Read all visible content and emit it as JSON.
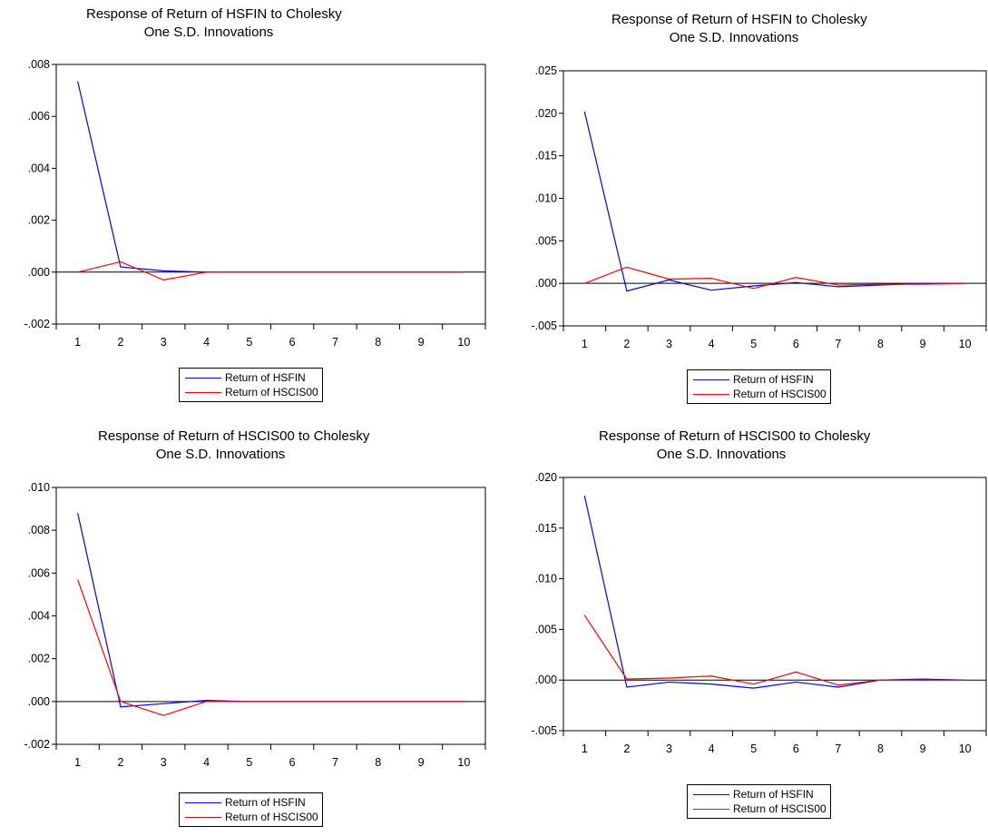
{
  "chart_data": [
    {
      "type": "line",
      "title": "Response of Return of HSFIN to Cholesky",
      "subtitle": "One S.D. Innovations",
      "x": [
        1,
        2,
        3,
        4,
        5,
        6,
        7,
        8,
        9,
        10
      ],
      "ylim": [
        -0.002,
        0.008
      ],
      "yticks": [
        -0.002,
        0.0,
        0.002,
        0.004,
        0.006,
        0.008
      ],
      "ytick_labels": [
        "-.002",
        ".000",
        ".002",
        ".004",
        ".006",
        ".008"
      ],
      "xtick_labels": [
        "1",
        "2",
        "3",
        "4",
        "5",
        "6",
        "7",
        "8",
        "9",
        "10"
      ],
      "zero_line": true,
      "legend_position": "bottom",
      "series": [
        {
          "name": "Return of HSFIN",
          "color": "#0000ff",
          "values": [
            0.00735,
            0.0002,
            5e-05,
            0.0,
            0.0,
            0.0,
            0.0,
            0.0,
            0.0,
            0.0
          ]
        },
        {
          "name": "Return of HSCIS00",
          "color": "#ff0000",
          "values": [
            0.0,
            0.0004,
            -0.0003,
            0.0,
            0.0,
            0.0,
            0.0,
            0.0,
            0.0,
            0.0
          ]
        }
      ]
    },
    {
      "type": "line",
      "title": "Response of Return of HSFIN to Cholesky",
      "subtitle": "One S.D. Innovations",
      "x": [
        1,
        2,
        3,
        4,
        5,
        6,
        7,
        8,
        9,
        10
      ],
      "ylim": [
        -0.005,
        0.025
      ],
      "yticks": [
        -0.005,
        0.0,
        0.005,
        0.01,
        0.015,
        0.02,
        0.025
      ],
      "ytick_labels": [
        "-.005",
        ".000",
        ".005",
        ".010",
        ".015",
        ".020",
        ".025"
      ],
      "xtick_labels": [
        "1",
        "2",
        "3",
        "4",
        "5",
        "6",
        "7",
        "8",
        "9",
        "10"
      ],
      "zero_line": true,
      "legend_position": "bottom",
      "series": [
        {
          "name": "Return of HSFIN",
          "color": "#0000ff",
          "values": [
            0.0202,
            -0.0009,
            0.0004,
            -0.0008,
            -0.0003,
            0.0001,
            -0.0004,
            -0.0002,
            0.0,
            0.0
          ]
        },
        {
          "name": "Return of HSCIS00",
          "color": "#ff0000",
          "values": [
            0.0,
            0.0019,
            0.0005,
            0.0006,
            -0.0006,
            0.0007,
            -0.0002,
            -0.0001,
            -0.0001,
            0.0
          ]
        }
      ]
    },
    {
      "type": "line",
      "title": "Response of Return of HSCIS00 to Cholesky",
      "subtitle": "One S.D. Innovations",
      "x": [
        1,
        2,
        3,
        4,
        5,
        6,
        7,
        8,
        9,
        10
      ],
      "ylim": [
        -0.002,
        0.01
      ],
      "yticks": [
        -0.002,
        0.0,
        0.002,
        0.004,
        0.006,
        0.008,
        0.01
      ],
      "ytick_labels": [
        "-.002",
        ".000",
        ".002",
        ".004",
        ".006",
        ".008",
        ".010"
      ],
      "xtick_labels": [
        "1",
        "2",
        "3",
        "4",
        "5",
        "6",
        "7",
        "8",
        "9",
        "10"
      ],
      "zero_line": true,
      "legend_position": "bottom",
      "series": [
        {
          "name": "Return of HSFIN",
          "color": "#0000ff",
          "values": [
            0.0088,
            -0.00025,
            -0.0001,
            5e-05,
            0.0,
            0.0,
            0.0,
            0.0,
            0.0,
            0.0
          ]
        },
        {
          "name": "Return of HSCIS00",
          "color": "#ff0000",
          "values": [
            0.0057,
            0.0,
            -0.00065,
            0.0,
            0.0,
            0.0,
            0.0,
            0.0,
            0.0,
            0.0
          ]
        }
      ]
    },
    {
      "type": "line",
      "title": "Response of Return of HSCIS00 to Cholesky",
      "subtitle": "One S.D. Innovations",
      "x": [
        1,
        2,
        3,
        4,
        5,
        6,
        7,
        8,
        9,
        10
      ],
      "ylim": [
        -0.005,
        0.02
      ],
      "yticks": [
        -0.005,
        0.0,
        0.005,
        0.01,
        0.015,
        0.02
      ],
      "ytick_labels": [
        "-.005",
        ".000",
        ".005",
        ".010",
        ".015",
        ".020"
      ],
      "xtick_labels": [
        "1",
        "2",
        "3",
        "4",
        "5",
        "6",
        "7",
        "8",
        "9",
        "10"
      ],
      "zero_line": true,
      "legend_position": "bottom",
      "series": [
        {
          "name": "Return of HSFIN",
          "color": "#0000ff",
          "values": [
            0.0182,
            -0.0007,
            -0.0002,
            -0.0004,
            -0.0008,
            -0.0002,
            -0.0007,
            0.0,
            0.0001,
            0.0
          ]
        },
        {
          "name": "Return of HSCIS00",
          "color": "#ff0000",
          "values": [
            0.0064,
            0.0001,
            0.0002,
            0.0004,
            -0.0004,
            0.0008,
            -0.0005,
            0.0,
            0.0,
            0.0
          ]
        }
      ]
    }
  ]
}
